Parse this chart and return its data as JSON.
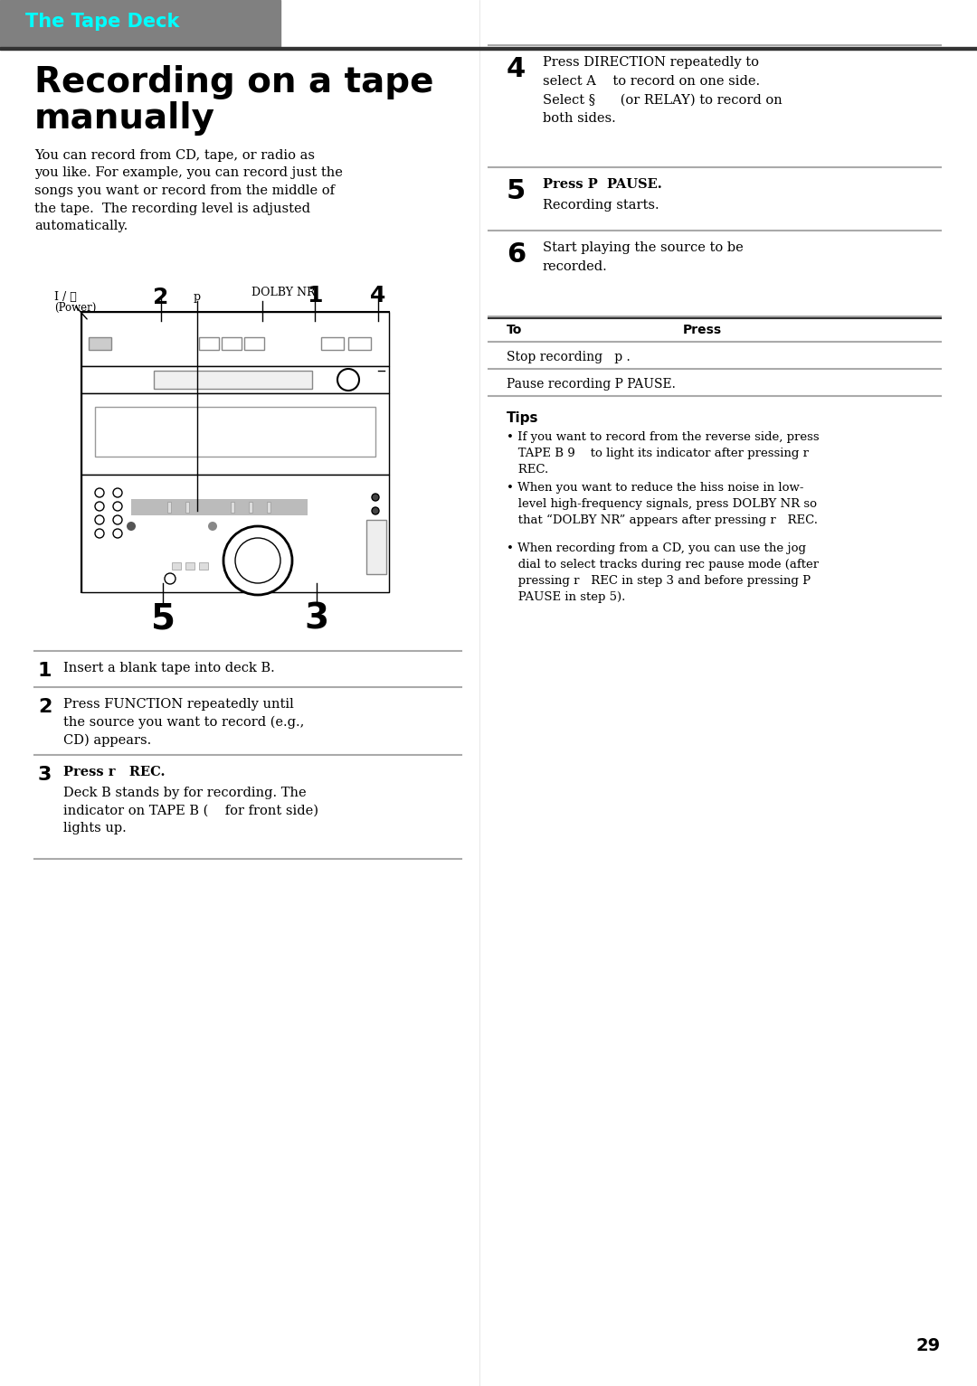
{
  "bg_color": "#ffffff",
  "header_bg": "#808080",
  "header_text": "The Tape Deck",
  "header_text_color": "#00ffff",
  "title_line1": "Recording on a tape",
  "title_line2": "manually",
  "intro_text": "You can record from CD, tape, or radio as\nyou like. For example, you can record just the\nsongs you want or record from the middle of\nthe tape.  The recording level is adjusted\nautomatically.",
  "step1_num": "1",
  "step1_text": "Insert a blank tape into deck B.",
  "step2_num": "2",
  "step2_text": "Press FUNCTION repeatedly until\nthe source you want to record (e.g.,\nCD) appears.",
  "step3_num": "3",
  "step3_text_bold": "Press r   REC.",
  "step3_text_normal": "Deck B stands by for recording. The\nindicator on TAPE B (    for front side)\nlights up.",
  "step4_num": "4",
  "step4_text": "Press DIRECTION repeatedly to\nselect A    to record on one side.\nSelect §      (or RELAY) to record on\nboth sides.",
  "step5_num": "5",
  "step5_text_bold": "Press P  PAUSE.",
  "step5_text_normal": "Recording starts.",
  "step6_num": "6",
  "step6_text": "Start playing the source to be\nrecorded.",
  "table_header_to": "To",
  "table_header_press": "Press",
  "table_row1_to": "Stop recording   p .",
  "table_row2_to": "Pause recording P PAUSE.",
  "tips_title": "Tips",
  "tip1": "• If you want to record from the reverse side, press\n   TAPE B 9    to light its indicator after pressing r\n   REC.",
  "tip2": "• When you want to reduce the hiss noise in low-\n   level high-frequency signals, press DOLBY NR so\n   that “DOLBY NR” appears after pressing r   REC.",
  "tip3": "• When recording from a CD, you can use the jog\n   dial to select tracks during rec pause mode (after\n   pressing r   REC in step 3 and before pressing P\n   PAUSE in step 5).",
  "page_number": "29",
  "divider_color": "#aaaaaa",
  "dark_divider_color": "#333333"
}
